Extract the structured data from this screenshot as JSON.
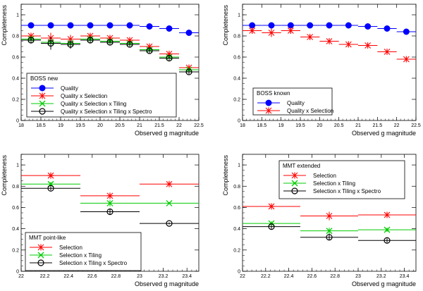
{
  "chart_data": [
    {
      "type": "scatter",
      "title": "",
      "xlabel": "Observed g magnitude",
      "ylabel": "Completeness",
      "xlim": [
        18,
        22.5
      ],
      "ylim": [
        0,
        1.1
      ],
      "xticks": [
        "18",
        "18.5",
        "19",
        "19.5",
        "20",
        "20.5",
        "21",
        "21.5",
        "22",
        "22.5"
      ],
      "yticks": [
        "0",
        "0.2",
        "0.4",
        "0.6",
        "0.8",
        "1"
      ],
      "legend_title": "BOSS new",
      "legend_position": "bottom-left",
      "series": [
        {
          "name": "Quality",
          "color": "#0000ff",
          "marker": "circle-filled",
          "x": [
            18.25,
            18.75,
            19.25,
            19.75,
            20.25,
            20.75,
            21.25,
            21.75,
            22.25
          ],
          "xerr": 0.25,
          "y": [
            0.9,
            0.9,
            0.9,
            0.9,
            0.9,
            0.9,
            0.89,
            0.87,
            0.83
          ],
          "yerr": [
            0,
            0,
            0,
            0,
            0,
            0,
            0,
            0,
            0.02
          ]
        },
        {
          "name": "Quality x Selection",
          "color": "#ff0000",
          "marker": "star",
          "x": [
            18.25,
            18.75,
            19.25,
            19.75,
            20.25,
            20.75,
            21.25,
            21.75,
            22.25
          ],
          "xerr": 0.25,
          "y": [
            0.8,
            0.78,
            0.77,
            0.8,
            0.78,
            0.76,
            0.7,
            0.63,
            0.5
          ],
          "yerr": [
            0.03,
            0.05,
            0.04,
            0.03,
            0.02,
            0.02,
            0.02,
            0.02,
            0.02
          ]
        },
        {
          "name": "Quality x Selection x Tiling",
          "color": "#00cc00",
          "marker": "cross",
          "x": [
            18.25,
            18.75,
            19.25,
            19.75,
            20.25,
            20.75,
            21.25,
            21.75,
            22.25
          ],
          "xerr": 0.25,
          "y": [
            0.77,
            0.74,
            0.73,
            0.77,
            0.75,
            0.73,
            0.67,
            0.6,
            0.48
          ],
          "yerr": [
            0.03,
            0.05,
            0.04,
            0.03,
            0.02,
            0.02,
            0.02,
            0.02,
            0.02
          ]
        },
        {
          "name": "Quality x Selection x Tiling x Spectro",
          "color": "#000000",
          "marker": "circle-open",
          "x": [
            18.25,
            18.75,
            19.25,
            19.75,
            20.25,
            20.75,
            21.25,
            21.75,
            22.25
          ],
          "xerr": 0.25,
          "y": [
            0.76,
            0.73,
            0.72,
            0.76,
            0.74,
            0.72,
            0.66,
            0.59,
            0.46
          ],
          "yerr": [
            0.03,
            0.06,
            0.04,
            0.03,
            0.02,
            0.02,
            0.02,
            0.02,
            0.02
          ]
        }
      ]
    },
    {
      "type": "scatter",
      "title": "",
      "xlabel": "Observed g magnitude",
      "ylabel": "Completeness",
      "xlim": [
        18,
        22.5
      ],
      "ylim": [
        0,
        1.1
      ],
      "xticks": [
        "18",
        "18.5",
        "19",
        "19.5",
        "20",
        "20.5",
        "21",
        "21.5",
        "22",
        "22.5"
      ],
      "yticks": [
        "0",
        "0.2",
        "0.4",
        "0.6",
        "0.8",
        "1"
      ],
      "legend_title": "BOSS known",
      "legend_position": "bottom-left",
      "series": [
        {
          "name": "Quality",
          "color": "#0000ff",
          "marker": "circle-filled",
          "x": [
            18.25,
            18.75,
            19.25,
            19.75,
            20.25,
            20.75,
            21.25,
            21.75,
            22.25
          ],
          "xerr": 0.25,
          "y": [
            0.9,
            0.9,
            0.9,
            0.9,
            0.9,
            0.9,
            0.89,
            0.87,
            0.84
          ],
          "yerr": [
            0,
            0,
            0,
            0,
            0,
            0,
            0,
            0,
            0.02
          ]
        },
        {
          "name": "Quality x Selection",
          "color": "#ff0000",
          "marker": "star",
          "x": [
            18.25,
            18.75,
            19.25,
            19.75,
            20.25,
            20.75,
            21.25,
            21.75,
            22.25
          ],
          "xerr": 0.25,
          "y": [
            0.85,
            0.83,
            0.85,
            0.79,
            0.75,
            0.72,
            0.71,
            0.65,
            0.58
          ],
          "yerr": [
            0.03,
            0.04,
            0.03,
            0.02,
            0.01,
            0.01,
            0.01,
            0.01,
            0.01
          ]
        }
      ]
    },
    {
      "type": "scatter",
      "title": "",
      "xlabel": "Observed g magnitude",
      "ylabel": "Completeness",
      "xlim": [
        22,
        23.5
      ],
      "ylim": [
        0,
        1.1
      ],
      "xticks": [
        "22",
        "22.2",
        "22.4",
        "22.6",
        "22.8",
        "23",
        "23.2",
        "23.4"
      ],
      "yticks": [
        "0",
        "0.2",
        "0.4",
        "0.6",
        "0.8",
        "1"
      ],
      "legend_title": "MMT point-like",
      "legend_position": "bottom-left",
      "series": [
        {
          "name": "Selection",
          "color": "#ff0000",
          "marker": "star",
          "x": [
            22.25,
            22.75,
            23.25
          ],
          "xerr": 0.25,
          "y": [
            0.9,
            0.71,
            0.82
          ],
          "yerr": [
            0.02,
            0.03,
            0.01
          ]
        },
        {
          "name": "Selection x Tiling",
          "color": "#00cc00",
          "marker": "cross",
          "x": [
            22.25,
            22.75,
            23.25
          ],
          "xerr": 0.25,
          "y": [
            0.82,
            0.64,
            0.64
          ],
          "yerr": [
            0.02,
            0.03,
            0.01
          ]
        },
        {
          "name": "Selection x Tiling x Spectro",
          "color": "#000000",
          "marker": "circle-open",
          "x": [
            22.25,
            22.75,
            23.25
          ],
          "xerr": 0.25,
          "y": [
            0.78,
            0.56,
            0.45
          ],
          "yerr": [
            0.02,
            0.03,
            0.01
          ]
        }
      ]
    },
    {
      "type": "scatter",
      "title": "",
      "xlabel": "Observed g magnitude",
      "ylabel": "Completeness",
      "xlim": [
        22,
        23.5
      ],
      "ylim": [
        0,
        1.1
      ],
      "xticks": [
        "22",
        "22.2",
        "22.4",
        "22.6",
        "22.8",
        "23",
        "23.2",
        "23.4"
      ],
      "yticks": [
        "0",
        "0.2",
        "0.4",
        "0.6",
        "0.8",
        "1"
      ],
      "legend_title": "MMT extended",
      "legend_position": "top-right",
      "series": [
        {
          "name": "Selection",
          "color": "#ff0000",
          "marker": "star",
          "x": [
            22.25,
            22.75,
            23.25
          ],
          "xerr": 0.25,
          "y": [
            0.61,
            0.52,
            0.53
          ],
          "yerr": [
            0.02,
            0.04,
            0.02
          ]
        },
        {
          "name": "Selection x Tiling",
          "color": "#00cc00",
          "marker": "cross",
          "x": [
            22.25,
            22.75,
            23.25
          ],
          "xerr": 0.25,
          "y": [
            0.45,
            0.38,
            0.39
          ],
          "yerr": [
            0.02,
            0.03,
            0.02
          ]
        },
        {
          "name": "Selection x Tiling x Spectro",
          "color": "#000000",
          "marker": "circle-open",
          "x": [
            22.25,
            22.75,
            23.25
          ],
          "xerr": 0.25,
          "y": [
            0.42,
            0.32,
            0.29
          ],
          "yerr": [
            0.02,
            0.03,
            0.02
          ]
        }
      ]
    }
  ]
}
